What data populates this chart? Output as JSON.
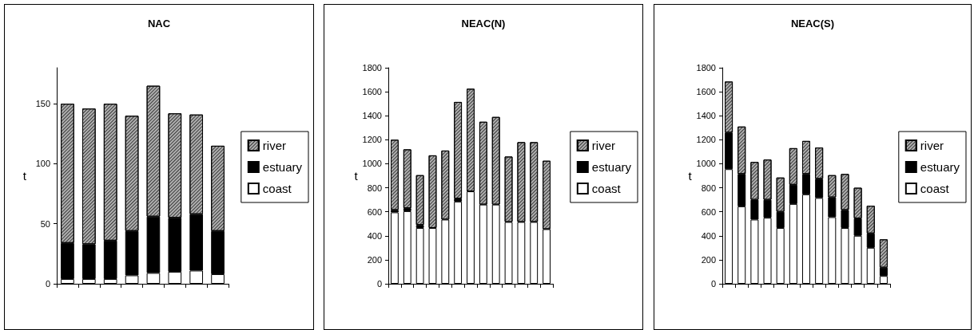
{
  "chart_data": [
    {
      "type": "bar",
      "title": "NAC",
      "ylabel": "t",
      "stacked": true,
      "legend": "right",
      "grid": false,
      "categories": [
        null,
        null,
        null,
        null,
        null,
        null,
        null,
        null
      ],
      "ylim": [
        0,
        180
      ],
      "yticks": [
        0,
        50,
        100,
        150
      ],
      "series": [
        {
          "name": "coast",
          "color": "#ffffff",
          "values": [
            4,
            4,
            4,
            7,
            9,
            10,
            11,
            8
          ]
        },
        {
          "name": "estuary",
          "color": "#000000",
          "values": [
            30,
            29,
            32,
            37,
            47,
            45,
            47,
            36
          ]
        },
        {
          "name": "river",
          "color": "#b0b0b0",
          "values": [
            116,
            113,
            114,
            96,
            109,
            87,
            83,
            71
          ]
        }
      ]
    },
    {
      "type": "bar",
      "title": "NEAC(N)",
      "ylabel": "t",
      "stacked": true,
      "legend": "right",
      "grid": false,
      "categories": [
        null,
        null,
        null,
        null,
        null,
        null,
        null,
        null,
        null,
        null,
        null,
        null,
        null
      ],
      "ylim": [
        0,
        1800
      ],
      "yticks": [
        0,
        200,
        400,
        600,
        800,
        1000,
        1200,
        1400,
        1600,
        1800
      ],
      "series": [
        {
          "name": "coast",
          "color": "#ffffff",
          "values": [
            595,
            605,
            465,
            465,
            535,
            685,
            770,
            660,
            660,
            515,
            515,
            515,
            455
          ]
        },
        {
          "name": "estuary",
          "color": "#000000",
          "values": [
            20,
            25,
            25,
            null,
            null,
            25,
            null,
            null,
            null,
            null,
            null,
            null,
            null
          ]
        },
        {
          "name": "river",
          "color": "#b0b0b0",
          "values": [
            585,
            490,
            415,
            605,
            575,
            805,
            855,
            690,
            730,
            545,
            665,
            665,
            570
          ]
        }
      ]
    },
    {
      "type": "bar",
      "title": "NEAC(S)",
      "ylabel": "t",
      "stacked": true,
      "legend": "right",
      "grid": false,
      "categories": [
        null,
        null,
        null,
        null,
        null,
        null,
        null,
        null,
        null,
        null,
        null,
        null,
        null
      ],
      "ylim": [
        0,
        1800
      ],
      "yticks": [
        0,
        200,
        400,
        600,
        800,
        1000,
        1200,
        1400,
        1600,
        1800
      ],
      "series": [
        {
          "name": "coast",
          "color": "#ffffff",
          "values": [
            955,
            645,
            535,
            550,
            465,
            665,
            745,
            715,
            555,
            465,
            400,
            300,
            65
          ]
        },
        {
          "name": "estuary",
          "color": "#000000",
          "values": [
            305,
            270,
            165,
            150,
            135,
            160,
            170,
            160,
            165,
            150,
            145,
            120,
            70
          ]
        },
        {
          "name": "river",
          "color": "#b0b0b0",
          "values": [
            425,
            395,
            315,
            335,
            285,
            305,
            275,
            260,
            185,
            300,
            255,
            230,
            235
          ]
        }
      ]
    }
  ]
}
